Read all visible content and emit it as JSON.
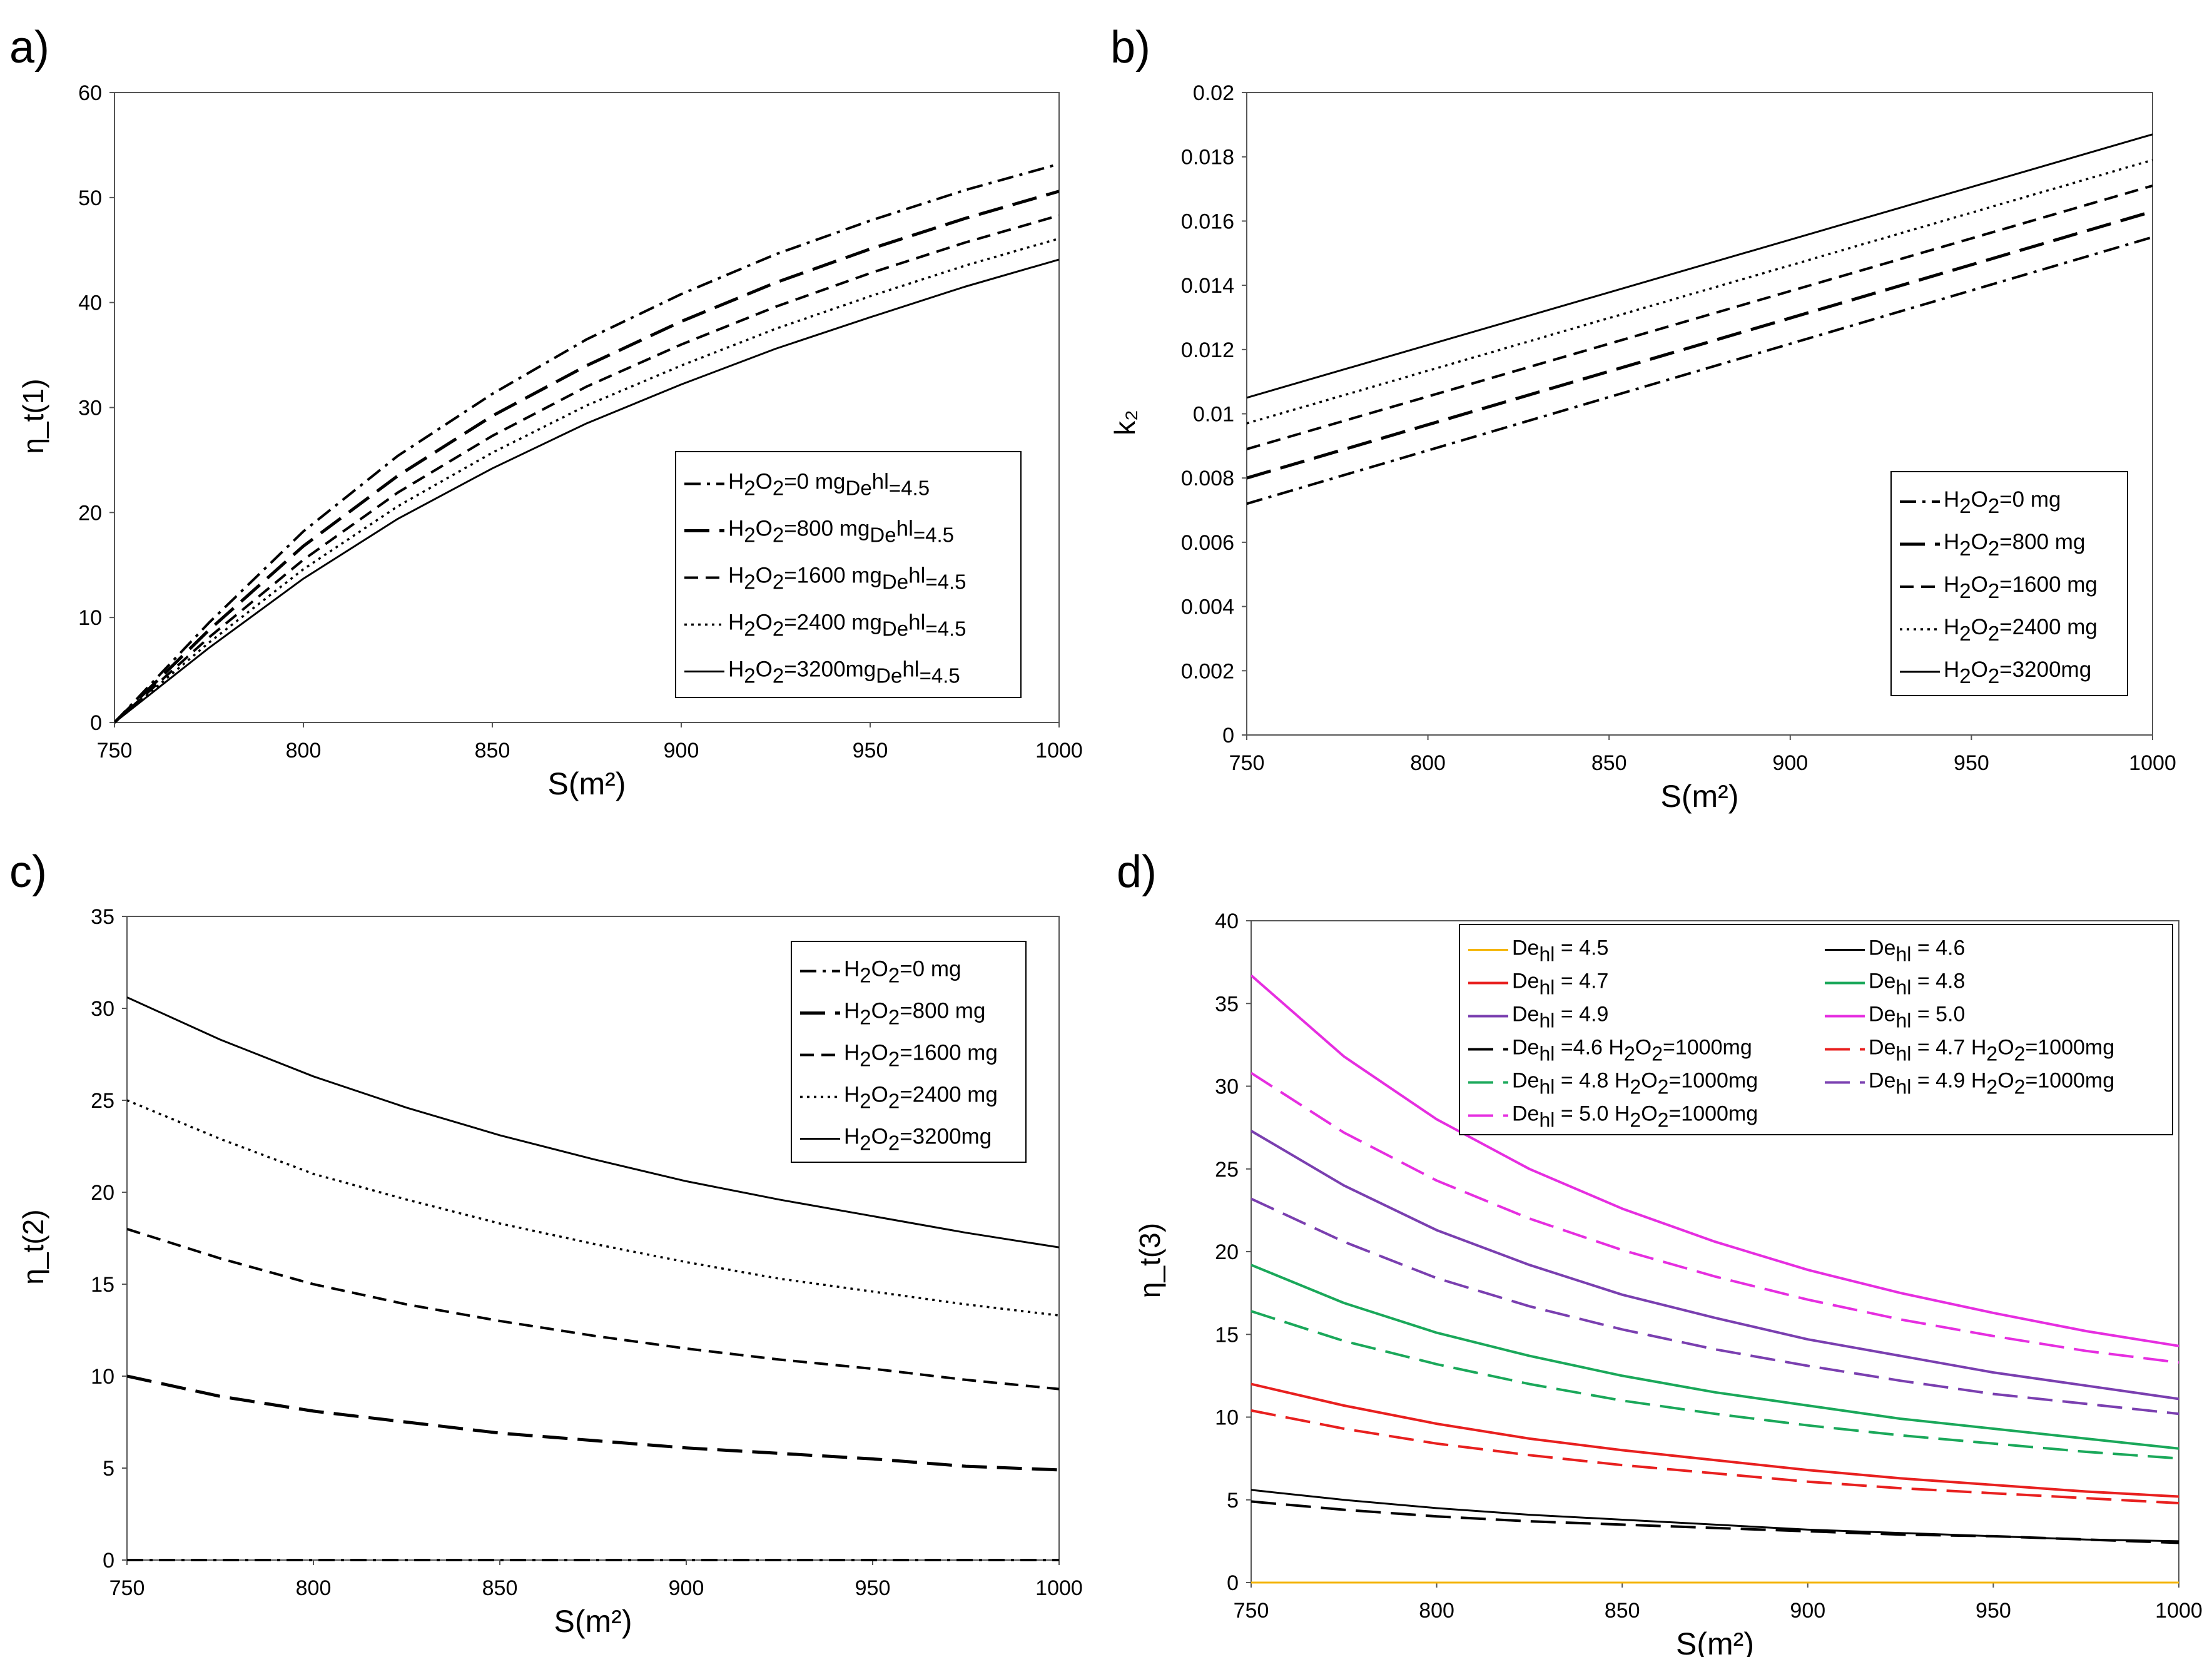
{
  "chart_data": [
    {
      "panel": "a)",
      "type": "line",
      "xlabel": "S(m²)",
      "ylabel": "η_t(1)",
      "xlim": [
        750,
        1000
      ],
      "ylim": [
        0,
        60
      ],
      "xticks": [
        750,
        800,
        850,
        900,
        950,
        1000
      ],
      "yticks": [
        0,
        10,
        20,
        30,
        40,
        50,
        60
      ],
      "yticklabels": [
        "0",
        "10",
        "20",
        "30",
        "40",
        "50",
        "60"
      ],
      "legend_position": "lower-right",
      "x": [
        750,
        775,
        800,
        825,
        850,
        875,
        900,
        925,
        950,
        975,
        1000
      ],
      "series": [
        {
          "name": "H2O2=0 mg",
          "legend": [
            "H",
            "2",
            "O",
            "2",
            "=0 mg",
            "De",
            "hl",
            "=4.5"
          ],
          "style": "dashdot",
          "color": "#000000",
          "width": 4,
          "values": [
            0,
            9.5,
            18.2,
            25.4,
            31.3,
            36.5,
            40.8,
            44.6,
            47.8,
            50.7,
            53.2
          ]
        },
        {
          "name": "H2O2=800 mg",
          "legend": [
            "H",
            "2",
            "O",
            "2",
            "=800 mg",
            "De",
            "hl",
            "=4.5"
          ],
          "style": "longdash",
          "color": "#000000",
          "width": 5,
          "values": [
            0,
            8.8,
            16.8,
            23.5,
            29.2,
            34.0,
            38.2,
            41.9,
            45.1,
            48.0,
            50.6
          ]
        },
        {
          "name": "H2O2=1600 mg",
          "legend": [
            "H",
            "2",
            "O",
            "2",
            "=1600 mg",
            "De",
            "hl",
            "=4.5"
          ],
          "style": "dash",
          "color": "#000000",
          "width": 4,
          "values": [
            0,
            8.1,
            15.5,
            21.9,
            27.3,
            32.0,
            36.0,
            39.6,
            42.8,
            45.7,
            48.3
          ]
        },
        {
          "name": "H2O2=2400 mg",
          "legend": [
            "H",
            "2",
            "O",
            "2",
            "=2400 mg",
            "De",
            "hl",
            "=4.5"
          ],
          "style": "dot",
          "color": "#000000",
          "width": 3.5,
          "values": [
            0,
            7.6,
            14.6,
            20.6,
            25.7,
            30.2,
            34.0,
            37.5,
            40.6,
            43.5,
            46.1
          ]
        },
        {
          "name": "H2O2=3200mg",
          "legend": [
            "H",
            "2",
            "O",
            "2",
            "=3200mg",
            "De",
            "hl",
            "=4.5"
          ],
          "style": "solid",
          "color": "#000000",
          "width": 3,
          "values": [
            0,
            7.1,
            13.7,
            19.4,
            24.2,
            28.5,
            32.2,
            35.6,
            38.6,
            41.5,
            44.1
          ]
        }
      ]
    },
    {
      "panel": "b)",
      "type": "line",
      "xlabel": "S(m²)",
      "ylabel": "k₂",
      "xlim": [
        750,
        1000
      ],
      "ylim": [
        0,
        0.02
      ],
      "xticks": [
        750,
        800,
        850,
        900,
        950,
        1000
      ],
      "yticks": [
        0,
        0.002,
        0.004,
        0.006,
        0.008,
        0.01,
        0.012,
        0.014,
        0.016,
        0.018,
        0.02
      ],
      "yticklabels": [
        "0",
        "0.002",
        "0.004",
        "0.006",
        "0.008",
        "0.01",
        "0.012",
        "0.014",
        "0.016",
        "0.018",
        "0.02"
      ],
      "legend_position": "lower-right",
      "x": [
        750,
        1000
      ],
      "series": [
        {
          "name": "H2O2=0 mg",
          "legend": [
            "H",
            "2",
            "O",
            "2",
            "=0 mg"
          ],
          "style": "dashdot",
          "color": "#000000",
          "width": 4,
          "values": [
            0.0072,
            0.0155
          ]
        },
        {
          "name": "H2O2=800 mg",
          "legend": [
            "H",
            "2",
            "O",
            "2",
            "=800 mg"
          ],
          "style": "longdash",
          "color": "#000000",
          "width": 5,
          "values": [
            0.008,
            0.0163
          ]
        },
        {
          "name": "H2O2=1600 mg",
          "legend": [
            "H",
            "2",
            "O",
            "2",
            "=1600 mg"
          ],
          "style": "dash",
          "color": "#000000",
          "width": 4,
          "values": [
            0.0089,
            0.0171
          ]
        },
        {
          "name": "H2O2=2400 mg",
          "legend": [
            "H",
            "2",
            "O",
            "2",
            "=2400 mg"
          ],
          "style": "dot",
          "color": "#000000",
          "width": 3.5,
          "values": [
            0.0097,
            0.0179
          ]
        },
        {
          "name": "H2O2=3200mg",
          "legend": [
            "H",
            "2",
            "O",
            "2",
            "=3200mg"
          ],
          "style": "solid",
          "color": "#000000",
          "width": 3,
          "values": [
            0.0105,
            0.0187
          ]
        }
      ]
    },
    {
      "panel": "c)",
      "type": "line",
      "xlabel": "S(m²)",
      "ylabel": "η_t(2)",
      "xlim": [
        750,
        1000
      ],
      "ylim": [
        0,
        35
      ],
      "xticks": [
        750,
        800,
        850,
        900,
        950,
        1000
      ],
      "yticks": [
        0,
        5,
        10,
        15,
        20,
        25,
        30,
        35
      ],
      "yticklabels": [
        "0",
        "5",
        "10",
        "15",
        "20",
        "25",
        "30",
        "35"
      ],
      "legend_position": "top-right",
      "x": [
        750,
        775,
        800,
        825,
        850,
        875,
        900,
        925,
        950,
        975,
        1000
      ],
      "series": [
        {
          "name": "H2O2=0 mg",
          "legend": [
            "H",
            "2",
            "O",
            "2",
            "=0 mg"
          ],
          "style": "dashdot",
          "color": "#000000",
          "width": 4,
          "values": [
            0,
            0,
            0,
            0,
            0,
            0,
            0,
            0,
            0,
            0,
            0
          ]
        },
        {
          "name": "H2O2=800 mg",
          "legend": [
            "H",
            "2",
            "O",
            "2",
            "=800 mg"
          ],
          "style": "longdash",
          "color": "#000000",
          "width": 5,
          "values": [
            10.0,
            8.9,
            8.1,
            7.5,
            6.9,
            6.5,
            6.1,
            5.8,
            5.5,
            5.1,
            4.9
          ]
        },
        {
          "name": "H2O2=1600 mg",
          "legend": [
            "H",
            "2",
            "O",
            "2",
            "=1600 mg"
          ],
          "style": "dash",
          "color": "#000000",
          "width": 4,
          "values": [
            18.0,
            16.4,
            15.0,
            13.9,
            13.0,
            12.2,
            11.5,
            10.9,
            10.4,
            9.8,
            9.3
          ]
        },
        {
          "name": "H2O2=2400 mg",
          "legend": [
            "H",
            "2",
            "O",
            "2",
            "=2400 mg"
          ],
          "style": "dot",
          "color": "#000000",
          "width": 3.5,
          "values": [
            25.0,
            22.9,
            21.0,
            19.6,
            18.3,
            17.2,
            16.2,
            15.3,
            14.6,
            13.9,
            13.3
          ]
        },
        {
          "name": "H2O2=3200mg",
          "legend": [
            "H",
            "2",
            "O",
            "2",
            "=3200mg"
          ],
          "style": "solid",
          "color": "#000000",
          "width": 3,
          "values": [
            30.6,
            28.3,
            26.3,
            24.6,
            23.1,
            21.8,
            20.6,
            19.6,
            18.7,
            17.8,
            17.0
          ]
        }
      ]
    },
    {
      "panel": "d)",
      "type": "line",
      "xlabel": "S(m²)",
      "ylabel": "η_t(3)",
      "xlim": [
        750,
        1000
      ],
      "ylim": [
        0,
        40
      ],
      "xticks": [
        750,
        800,
        850,
        900,
        950,
        1000
      ],
      "yticks": [
        0,
        5,
        10,
        15,
        20,
        25,
        30,
        35,
        40
      ],
      "yticklabels": [
        "0",
        "5",
        "10",
        "15",
        "20",
        "25",
        "30",
        "35",
        "40"
      ],
      "legend_position": "top",
      "x": [
        750,
        775,
        800,
        825,
        850,
        875,
        900,
        925,
        950,
        975,
        1000
      ],
      "series": [
        {
          "name": "Dehl = 4.5",
          "legend": [
            "De",
            "hl",
            " = 4.5"
          ],
          "style": "solid",
          "color": "#f4b400",
          "width": 3,
          "values": [
            0,
            0,
            0,
            0,
            0,
            0,
            0,
            0,
            0,
            0,
            0
          ]
        },
        {
          "name": "Dehl = 4.6",
          "legend": [
            "De",
            "hl",
            " = 4.6"
          ],
          "style": "solid",
          "color": "#000000",
          "width": 3,
          "values": [
            5.6,
            5.0,
            4.5,
            4.1,
            3.8,
            3.5,
            3.2,
            3.0,
            2.8,
            2.6,
            2.5
          ]
        },
        {
          "name": "Dehl = 4.7",
          "legend": [
            "De",
            "hl",
            " = 4.7"
          ],
          "style": "solid",
          "color": "#e8201f",
          "width": 4,
          "values": [
            12.0,
            10.7,
            9.6,
            8.7,
            8.0,
            7.4,
            6.8,
            6.3,
            5.9,
            5.5,
            5.2
          ]
        },
        {
          "name": "Dehl = 4.8",
          "legend": [
            "De",
            "hl",
            " = 4.8"
          ],
          "style": "solid",
          "color": "#1aa85a",
          "width": 4,
          "values": [
            19.2,
            16.9,
            15.1,
            13.7,
            12.5,
            11.5,
            10.7,
            9.9,
            9.3,
            8.7,
            8.1
          ]
        },
        {
          "name": "Dehl = 4.9",
          "legend": [
            "De",
            "hl",
            " = 4.9"
          ],
          "style": "solid",
          "color": "#7a3fb0",
          "width": 4,
          "values": [
            27.3,
            24.0,
            21.3,
            19.2,
            17.4,
            16.0,
            14.7,
            13.7,
            12.7,
            11.9,
            11.1
          ]
        },
        {
          "name": "Dehl = 5.0",
          "legend": [
            "De",
            "hl",
            " = 5.0"
          ],
          "style": "solid",
          "color": "#e62ee0",
          "width": 4,
          "values": [
            36.7,
            31.8,
            28.0,
            25.0,
            22.6,
            20.6,
            18.9,
            17.5,
            16.3,
            15.2,
            14.3
          ]
        },
        {
          "name": "Dehl =4.6 H2O2=1000mg",
          "legend": [
            "De",
            "hl",
            " =4.6 H",
            "2",
            "O",
            "2",
            "=1000mg"
          ],
          "style": "longdash",
          "color": "#000000",
          "width": 4,
          "values": [
            4.9,
            4.4,
            4.0,
            3.7,
            3.5,
            3.3,
            3.1,
            2.9,
            2.8,
            2.6,
            2.4
          ]
        },
        {
          "name": "Dehl = 4.7 H2O2=1000mg",
          "legend": [
            "De",
            "hl",
            " = 4.7 H",
            "2",
            "O",
            "2",
            "=1000mg"
          ],
          "style": "longdash",
          "color": "#e8201f",
          "width": 4,
          "values": [
            10.4,
            9.3,
            8.4,
            7.7,
            7.1,
            6.6,
            6.1,
            5.7,
            5.4,
            5.1,
            4.8
          ]
        },
        {
          "name": "Dehl = 4.8 H2O2=1000mg",
          "legend": [
            "De",
            "hl",
            " = 4.8 H",
            "2",
            "O",
            "2",
            "=1000mg"
          ],
          "style": "longdash",
          "color": "#1aa85a",
          "width": 4,
          "values": [
            16.4,
            14.6,
            13.2,
            12.0,
            11.0,
            10.2,
            9.5,
            8.9,
            8.4,
            7.9,
            7.5
          ]
        },
        {
          "name": "Dehl = 4.9 H2O2=1000mg",
          "legend": [
            "De",
            "hl",
            " = 4.9 H",
            "2",
            "O",
            "2",
            "=1000mg"
          ],
          "style": "longdash",
          "color": "#7a3fb0",
          "width": 4,
          "values": [
            23.2,
            20.6,
            18.4,
            16.7,
            15.3,
            14.1,
            13.1,
            12.2,
            11.4,
            10.8,
            10.2
          ]
        },
        {
          "name": "Dehl = 5.0 H2O2=1000mg",
          "legend": [
            "De",
            "hl",
            " = 5.0 H",
            "2",
            "O",
            "2",
            "=1000mg"
          ],
          "style": "longdash",
          "color": "#e62ee0",
          "width": 4,
          "values": [
            30.8,
            27.2,
            24.3,
            22.0,
            20.1,
            18.5,
            17.1,
            15.9,
            14.9,
            14.0,
            13.3
          ]
        }
      ]
    }
  ]
}
